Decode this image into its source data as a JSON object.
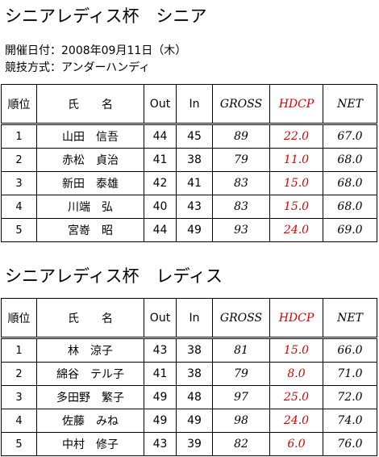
{
  "header": {
    "title": "シニアレディス杯　シニア",
    "date": "開催日付：2008年09月11日（木）",
    "format": "競技方式：アンダーハンディ"
  },
  "tables": [
    {
      "columns": [
        "順位",
        "氏　　名",
        "Out",
        "In",
        "GROSS",
        "HDCP",
        "NET"
      ],
      "rows": [
        [
          "1",
          "山田　信吾",
          "44",
          "45",
          "89",
          "22.0",
          "67.0"
        ],
        [
          "2",
          "赤松　貞治",
          "41",
          "38",
          "79",
          "11.0",
          "68.0"
        ],
        [
          "3",
          "新田　泰雄",
          "42",
          "41",
          "83",
          "15.0",
          "68.0"
        ],
        [
          "4",
          "川端　弘",
          "40",
          "43",
          "83",
          "15.0",
          "68.0"
        ],
        [
          "5",
          "宮嵜　昭",
          "44",
          "49",
          "93",
          "24.0",
          "69.0"
        ]
      ]
    },
    {
      "title": "シニアレディス杯　レディス",
      "columns": [
        "順位",
        "氏　　名",
        "Out",
        "In",
        "GROSS",
        "HDCP",
        "NET"
      ],
      "rows": [
        [
          "1",
          "林　涼子",
          "43",
          "38",
          "81",
          "15.0",
          "66.0"
        ],
        [
          "2",
          "綿谷　テル子",
          "41",
          "38",
          "79",
          "8.0",
          "71.0"
        ],
        [
          "3",
          "多田野　繁子",
          "49",
          "48",
          "97",
          "25.0",
          "72.0"
        ],
        [
          "4",
          "佐藤　みね",
          "49",
          "49",
          "98",
          "24.0",
          "74.0"
        ],
        [
          "5",
          "中村　修子",
          "43",
          "39",
          "82",
          "6.0",
          "76.0"
        ]
      ]
    }
  ]
}
